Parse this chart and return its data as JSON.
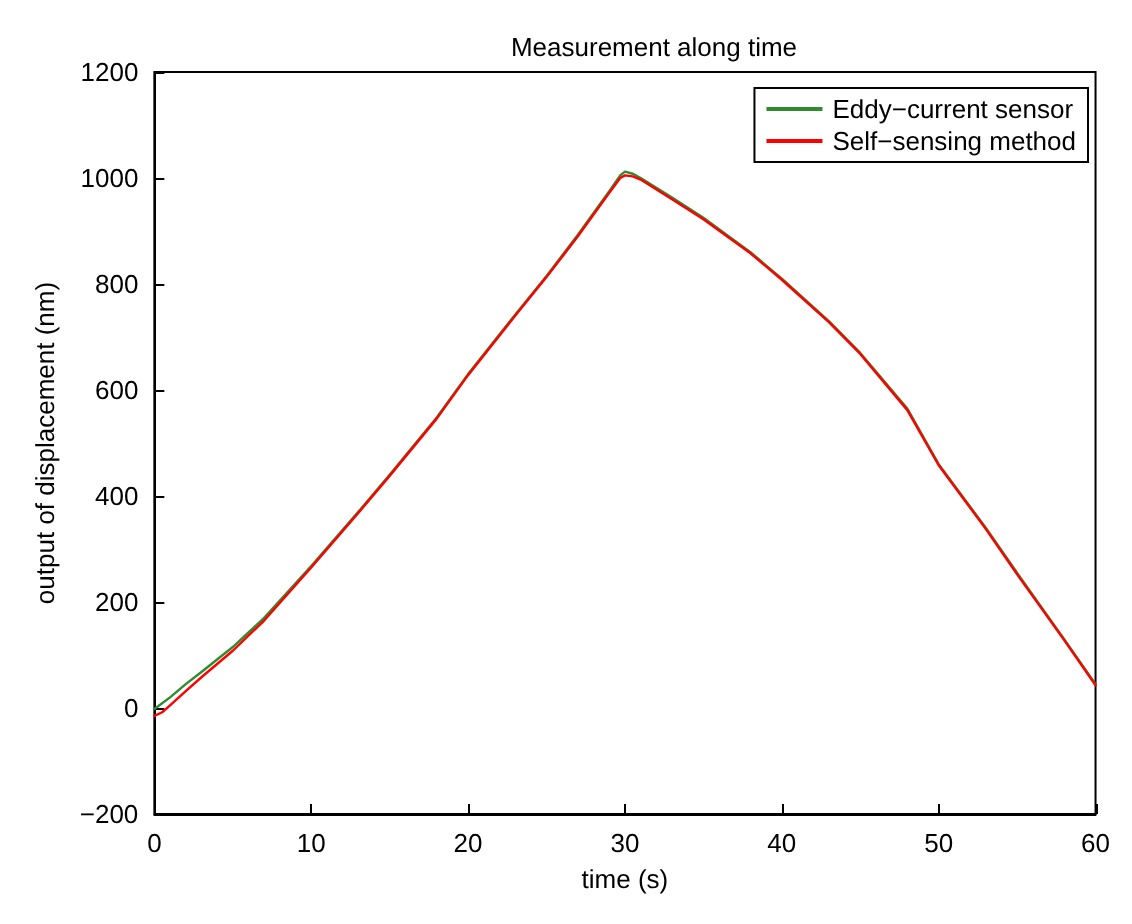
{
  "chart_data": {
    "type": "line",
    "title": "Measurement along time",
    "xlabel": "time (s)",
    "ylabel": "output of displacement (nm)",
    "xlim": [
      0,
      60
    ],
    "ylim": [
      -200,
      1200
    ],
    "xticks": [
      0,
      10,
      20,
      30,
      40,
      50,
      60
    ],
    "yticks": [
      -200,
      0,
      200,
      400,
      600,
      800,
      1000,
      1200
    ],
    "grid": false,
    "legend": "top right",
    "marker": "none",
    "line_style": "solid",
    "series": [
      {
        "name": "Eddy−current sensor",
        "color": "#2e8b2e",
        "x": [
          0,
          1,
          2,
          3,
          5,
          7,
          10,
          13,
          15,
          18,
          20,
          23,
          25,
          27,
          29,
          29.7,
          30,
          30.5,
          31,
          33,
          35,
          38,
          40,
          43,
          45,
          48,
          50,
          53,
          55,
          58,
          60
        ],
        "values": [
          -2,
          20,
          45,
          68,
          115,
          170,
          268,
          370,
          440,
          548,
          630,
          742,
          815,
          893,
          975,
          1005,
          1012,
          1008,
          1000,
          963,
          925,
          860,
          810,
          730,
          670,
          565,
          460,
          340,
          255,
          130,
          45
        ]
      },
      {
        "name": "Self−sensing method",
        "color": "#ff0000",
        "x": [
          0,
          0.5,
          1,
          2,
          3,
          5,
          7,
          10,
          13,
          15,
          18,
          20,
          23,
          25,
          27,
          29,
          29.7,
          30,
          30.5,
          31,
          33,
          35,
          38,
          40,
          43,
          45,
          48,
          50,
          53,
          55,
          58,
          60
        ],
        "values": [
          -15,
          -8,
          5,
          32,
          58,
          108,
          165,
          265,
          368,
          438,
          546,
          628,
          740,
          813,
          890,
          972,
          1000,
          1005,
          1003,
          997,
          960,
          922,
          858,
          808,
          728,
          668,
          562,
          458,
          338,
          252,
          128,
          43
        ]
      }
    ]
  }
}
